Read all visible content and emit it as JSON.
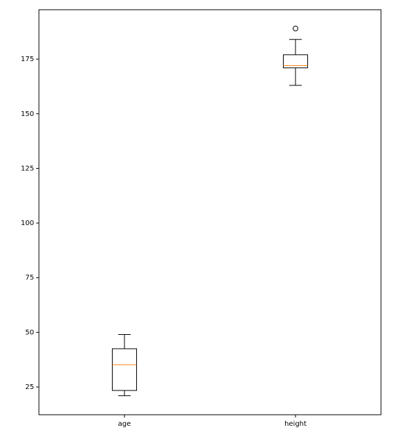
{
  "chart_data": {
    "type": "box",
    "categories": [
      "age",
      "height"
    ],
    "boxes": [
      {
        "min": 21,
        "q1": 23.4,
        "median": 35.2,
        "q3": 42.5,
        "max": 49,
        "outliers": []
      },
      {
        "min": 163,
        "q1": 171,
        "median": 172,
        "q3": 177,
        "max": 184,
        "outliers": [
          189
        ]
      }
    ],
    "box_color": "#000000",
    "median_color": "#ff7f0e",
    "ylim": [
      12.3,
      197.6
    ],
    "yticks": [
      25,
      50,
      75,
      100,
      125,
      150,
      175
    ],
    "grid": false
  }
}
